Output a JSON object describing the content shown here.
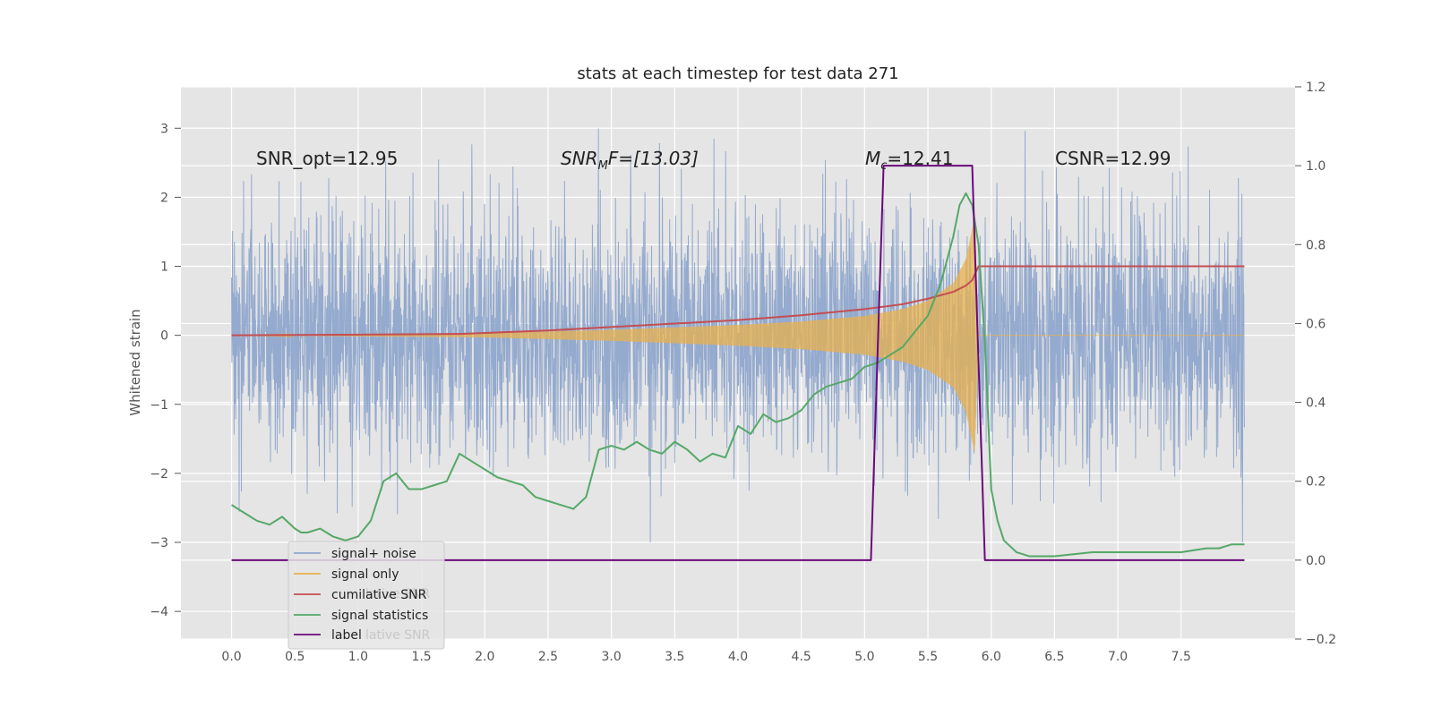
{
  "chart_data": {
    "type": "line",
    "title": "stats at each timestep for test data 271",
    "ylabel": "Whitened strain",
    "xlim": [
      -0.4,
      8.4
    ],
    "ylim": [
      -4.4,
      3.6
    ],
    "ylim_right": [
      -0.2,
      1.2
    ],
    "xticks": [
      0.0,
      0.5,
      1.0,
      1.5,
      2.0,
      2.5,
      3.0,
      3.5,
      4.0,
      4.5,
      5.0,
      5.5,
      6.0,
      6.5,
      7.0,
      7.5
    ],
    "xtick_labels": [
      "0.0",
      "0.5",
      "1.0",
      "1.5",
      "2.0",
      "2.5",
      "3.0",
      "3.5",
      "4.0",
      "4.5",
      "5.0",
      "5.5",
      "6.0",
      "6.5",
      "7.0",
      "7.5"
    ],
    "yticks": [
      3,
      2,
      1,
      0,
      -1,
      -2,
      -3,
      -4
    ],
    "ytick_labels": [
      "3",
      "2",
      "1",
      "0",
      "−1",
      "−2",
      "−3",
      "−4"
    ],
    "yticks_right": [
      1.2,
      1.0,
      0.8,
      0.6,
      0.4,
      0.2,
      0.0,
      -0.2
    ],
    "ytick_labels_right": [
      "1.2",
      "1.0",
      "0.8",
      "0.6",
      "0.4",
      "0.2",
      "0.0",
      "−0.2"
    ],
    "grid": true,
    "legend_position": "lower-left",
    "annotations": {
      "snr_opt": "SNR_opt=12.95",
      "snr_mf_main": "SNR",
      "snr_mf_sub": "M",
      "snr_mf_rest": "F=[13.03]",
      "mc_main": "M",
      "mc_sub": "c",
      "mc_rest": "=12.41",
      "csnr": "CSNR=12.99"
    },
    "legend": {
      "entries": [
        "signal+ noise",
        "signal only",
        "cumilative SNR",
        "signal statistics",
        "label"
      ],
      "ghost_1": "lative SNR",
      "ghost_2": "lative SNR"
    },
    "series": [
      {
        "name": "signal+ noise",
        "axis": "left",
        "color": "#8fa6cc",
        "style": "noise",
        "x_range": [
          0.0,
          8.0
        ],
        "envelope": [
          -3.0,
          3.0
        ],
        "approx_std": 0.9
      },
      {
        "name": "signal only",
        "axis": "left",
        "color": "#e8b04d",
        "style": "chirp",
        "x_range": [
          0.0,
          8.0
        ],
        "merger_time": 5.9,
        "envelope": [
          [
            0.0,
            0.0
          ],
          [
            2.0,
            0.03
          ],
          [
            3.0,
            0.08
          ],
          [
            4.0,
            0.15
          ],
          [
            4.5,
            0.2
          ],
          [
            5.0,
            0.28
          ],
          [
            5.3,
            0.38
          ],
          [
            5.5,
            0.5
          ],
          [
            5.7,
            0.75
          ],
          [
            5.8,
            1.1
          ],
          [
            5.87,
            1.7
          ],
          [
            5.9,
            0.0
          ],
          [
            8.0,
            0.0
          ]
        ]
      },
      {
        "name": "cumilative SNR",
        "axis": "left",
        "color": "#c44e52",
        "x": [
          0.0,
          1.0,
          1.8,
          2.5,
          3.0,
          3.5,
          4.0,
          4.5,
          5.0,
          5.3,
          5.5,
          5.7,
          5.8,
          5.85,
          5.9,
          6.0,
          7.0,
          8.0
        ],
        "y": [
          0.0,
          0.01,
          0.02,
          0.07,
          0.12,
          0.17,
          0.22,
          0.29,
          0.38,
          0.45,
          0.53,
          0.63,
          0.72,
          0.8,
          1.0,
          1.0,
          1.0,
          1.0
        ]
      },
      {
        "name": "signal statistics",
        "axis": "right",
        "color": "#55a868",
        "x": [
          0.0,
          0.1,
          0.2,
          0.3,
          0.4,
          0.5,
          0.55,
          0.6,
          0.7,
          0.8,
          0.9,
          1.0,
          1.1,
          1.2,
          1.3,
          1.4,
          1.5,
          1.6,
          1.7,
          1.8,
          1.9,
          2.0,
          2.1,
          2.2,
          2.3,
          2.4,
          2.5,
          2.6,
          2.7,
          2.8,
          2.9,
          3.0,
          3.1,
          3.2,
          3.3,
          3.4,
          3.5,
          3.6,
          3.7,
          3.8,
          3.9,
          4.0,
          4.1,
          4.2,
          4.3,
          4.4,
          4.5,
          4.6,
          4.7,
          4.8,
          4.9,
          5.0,
          5.1,
          5.2,
          5.3,
          5.4,
          5.5,
          5.6,
          5.7,
          5.75,
          5.8,
          5.85,
          5.9,
          5.95,
          6.0,
          6.05,
          6.1,
          6.2,
          6.3,
          6.5,
          6.8,
          7.0,
          7.3,
          7.5,
          7.7,
          7.8,
          7.9,
          8.0
        ],
        "y": [
          0.14,
          0.12,
          0.1,
          0.09,
          0.11,
          0.08,
          0.07,
          0.07,
          0.08,
          0.06,
          0.05,
          0.06,
          0.1,
          0.2,
          0.22,
          0.18,
          0.18,
          0.19,
          0.2,
          0.27,
          0.25,
          0.23,
          0.21,
          0.2,
          0.19,
          0.16,
          0.15,
          0.14,
          0.13,
          0.16,
          0.28,
          0.29,
          0.28,
          0.3,
          0.28,
          0.27,
          0.3,
          0.28,
          0.25,
          0.27,
          0.26,
          0.34,
          0.32,
          0.37,
          0.35,
          0.36,
          0.38,
          0.42,
          0.44,
          0.45,
          0.46,
          0.49,
          0.5,
          0.52,
          0.54,
          0.58,
          0.62,
          0.7,
          0.82,
          0.9,
          0.93,
          0.9,
          0.8,
          0.55,
          0.18,
          0.1,
          0.05,
          0.02,
          0.01,
          0.01,
          0.02,
          0.02,
          0.02,
          0.02,
          0.03,
          0.03,
          0.04,
          0.04
        ]
      },
      {
        "name": "label",
        "axis": "right",
        "color": "#6a0a7a",
        "x": [
          0.0,
          5.05,
          5.15,
          5.85,
          5.95,
          8.0
        ],
        "y": [
          0.0,
          0.0,
          1.0,
          1.0,
          0.0,
          0.0
        ]
      }
    ]
  }
}
